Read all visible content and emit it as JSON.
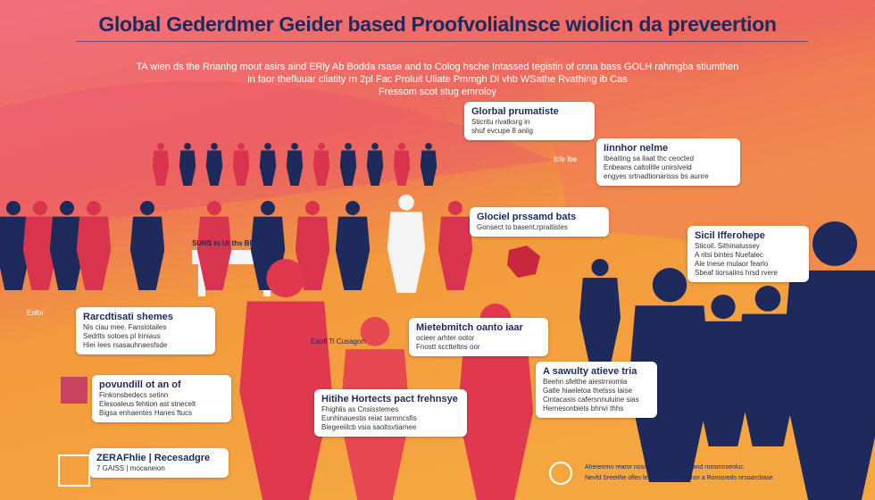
{
  "header": {
    "title": "Global Gederdmer Geider based Proofvolialnsce wiolicn da preveertion",
    "intro": [
      "TA wien ds the Rrianhg mout asirs aind ERly Ab Bodda rsase and to Colog hsche Intassed tegistin of cnna bass GOLH rahmgba stiumthen",
      "in faor thefluuar cliatity   rn 2pl Fac Proluit Uliate Pmmgh Di vhb WSathe Rvathing ib Cas",
      "Fressom scot stug emroloy"
    ]
  },
  "callouts": [
    {
      "lines": [
        "Glorbal prumatiste",
        "Sticritu rivatksrg in",
        "shuf evcupe 8 aniig"
      ]
    },
    {
      "lines": [
        "Iinnhor nelme",
        "Ibeaiting sa ilaat thc ceocted",
        "Enbeans caltolitle unirsiveid",
        "engyes srtnadtionarisss bs aunre"
      ]
    },
    {
      "lines": [
        "Glociel prssamd bats",
        "Gonsect to basent,rpraitistes"
      ]
    },
    {
      "lines": [
        "Sicil Ifferohepe",
        "Sticoil. Sithinalussey",
        "A ritsi bintes Nuefalec",
        "Ale tnese mulaor fearlo",
        "Sbeaf tiorsaiins hrsd rvere"
      ]
    },
    {
      "lines": [
        "Rarcdtisati shemes",
        "Nis ciau mee. Fansiotailes",
        "Sedrlts sotoes pl lriniaus",
        "Hiei Iees rsasauhnaesfsde"
      ]
    },
    {
      "lines": [
        "povundill ot an of",
        "Finkonsbedecs setinn",
        "Elesoaleus fehtion ast stnecelt",
        "Bigsa enhaentes Hanes ftucs"
      ]
    },
    {
      "lines": [
        "Mietebmitch oanto iaar",
        "ocieer arhter ootor",
        "Fnostt scctteltns oor"
      ]
    },
    {
      "lines": [
        "Hitihe Hortects pact frehnsye",
        "Fhighlis as Cnsisstemes",
        "Eunhinauestis reiat tarmncsfis",
        "Biegeeiilcb vsia saoltsvtiamee"
      ]
    },
    {
      "lines": [
        "A sawulty atieve tria",
        "Beehn sfelthe aiestrniomla",
        "Gatle hiaeletoa thetsss laise",
        "Cintacasis cafersnnuluine sias",
        "Hernesonbiets bhnvi thhs"
      ]
    },
    {
      "lines": [
        "ZERAFhlie | Recesadgre",
        "7 GAISS | mocaneion"
      ]
    }
  ],
  "labels": {
    "podium": "SUNS ts Ut ths BNNE",
    "tag": "fcfe Ibe",
    "side": "Enfor",
    "sign": "Eaofl Ti Cusagon",
    "footer": [
      "Ahereomn rearor nosscl ons aold Intaeand ronsmnseoluc",
      "Nevfd Sreeithe ofles lestetnoe ona dd nor a Ronssreds nrsoarcbase"
    ]
  }
}
